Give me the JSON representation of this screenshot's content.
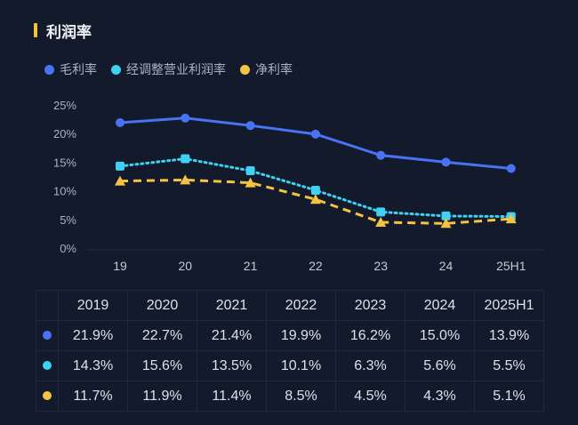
{
  "title": "利润率",
  "chart_data": {
    "type": "line",
    "categories": [
      "19",
      "20",
      "21",
      "22",
      "23",
      "24",
      "25H1"
    ],
    "yticks": [
      "0%",
      "5%",
      "10%",
      "15%",
      "20%",
      "25%"
    ],
    "ylim": [
      0,
      25
    ],
    "legend_position": "top-left",
    "series": [
      {
        "name": "毛利率",
        "color": "#4a72f5",
        "style": "solid",
        "marker": "circle",
        "values": [
          21.9,
          22.7,
          21.4,
          19.9,
          16.2,
          15.0,
          13.9
        ]
      },
      {
        "name": "经调整营业利润率",
        "color": "#3fd0f2",
        "style": "dotted",
        "marker": "square",
        "values": [
          14.3,
          15.6,
          13.5,
          10.1,
          6.3,
          5.6,
          5.5
        ]
      },
      {
        "name": "净利率",
        "color": "#f5c342",
        "style": "dashed",
        "marker": "triangle",
        "values": [
          11.7,
          11.9,
          11.4,
          8.5,
          4.5,
          4.3,
          5.1
        ]
      }
    ]
  },
  "table": {
    "headers": [
      "2019",
      "2020",
      "2021",
      "2022",
      "2023",
      "2024",
      "2025H1"
    ],
    "rows": [
      [
        "21.9%",
        "22.7%",
        "21.4%",
        "19.9%",
        "16.2%",
        "15.0%",
        "13.9%"
      ],
      [
        "14.3%",
        "15.6%",
        "13.5%",
        "10.1%",
        "6.3%",
        "5.6%",
        "5.5%"
      ],
      [
        "11.7%",
        "11.9%",
        "11.4%",
        "8.5%",
        "4.5%",
        "4.3%",
        "5.1%"
      ]
    ]
  }
}
